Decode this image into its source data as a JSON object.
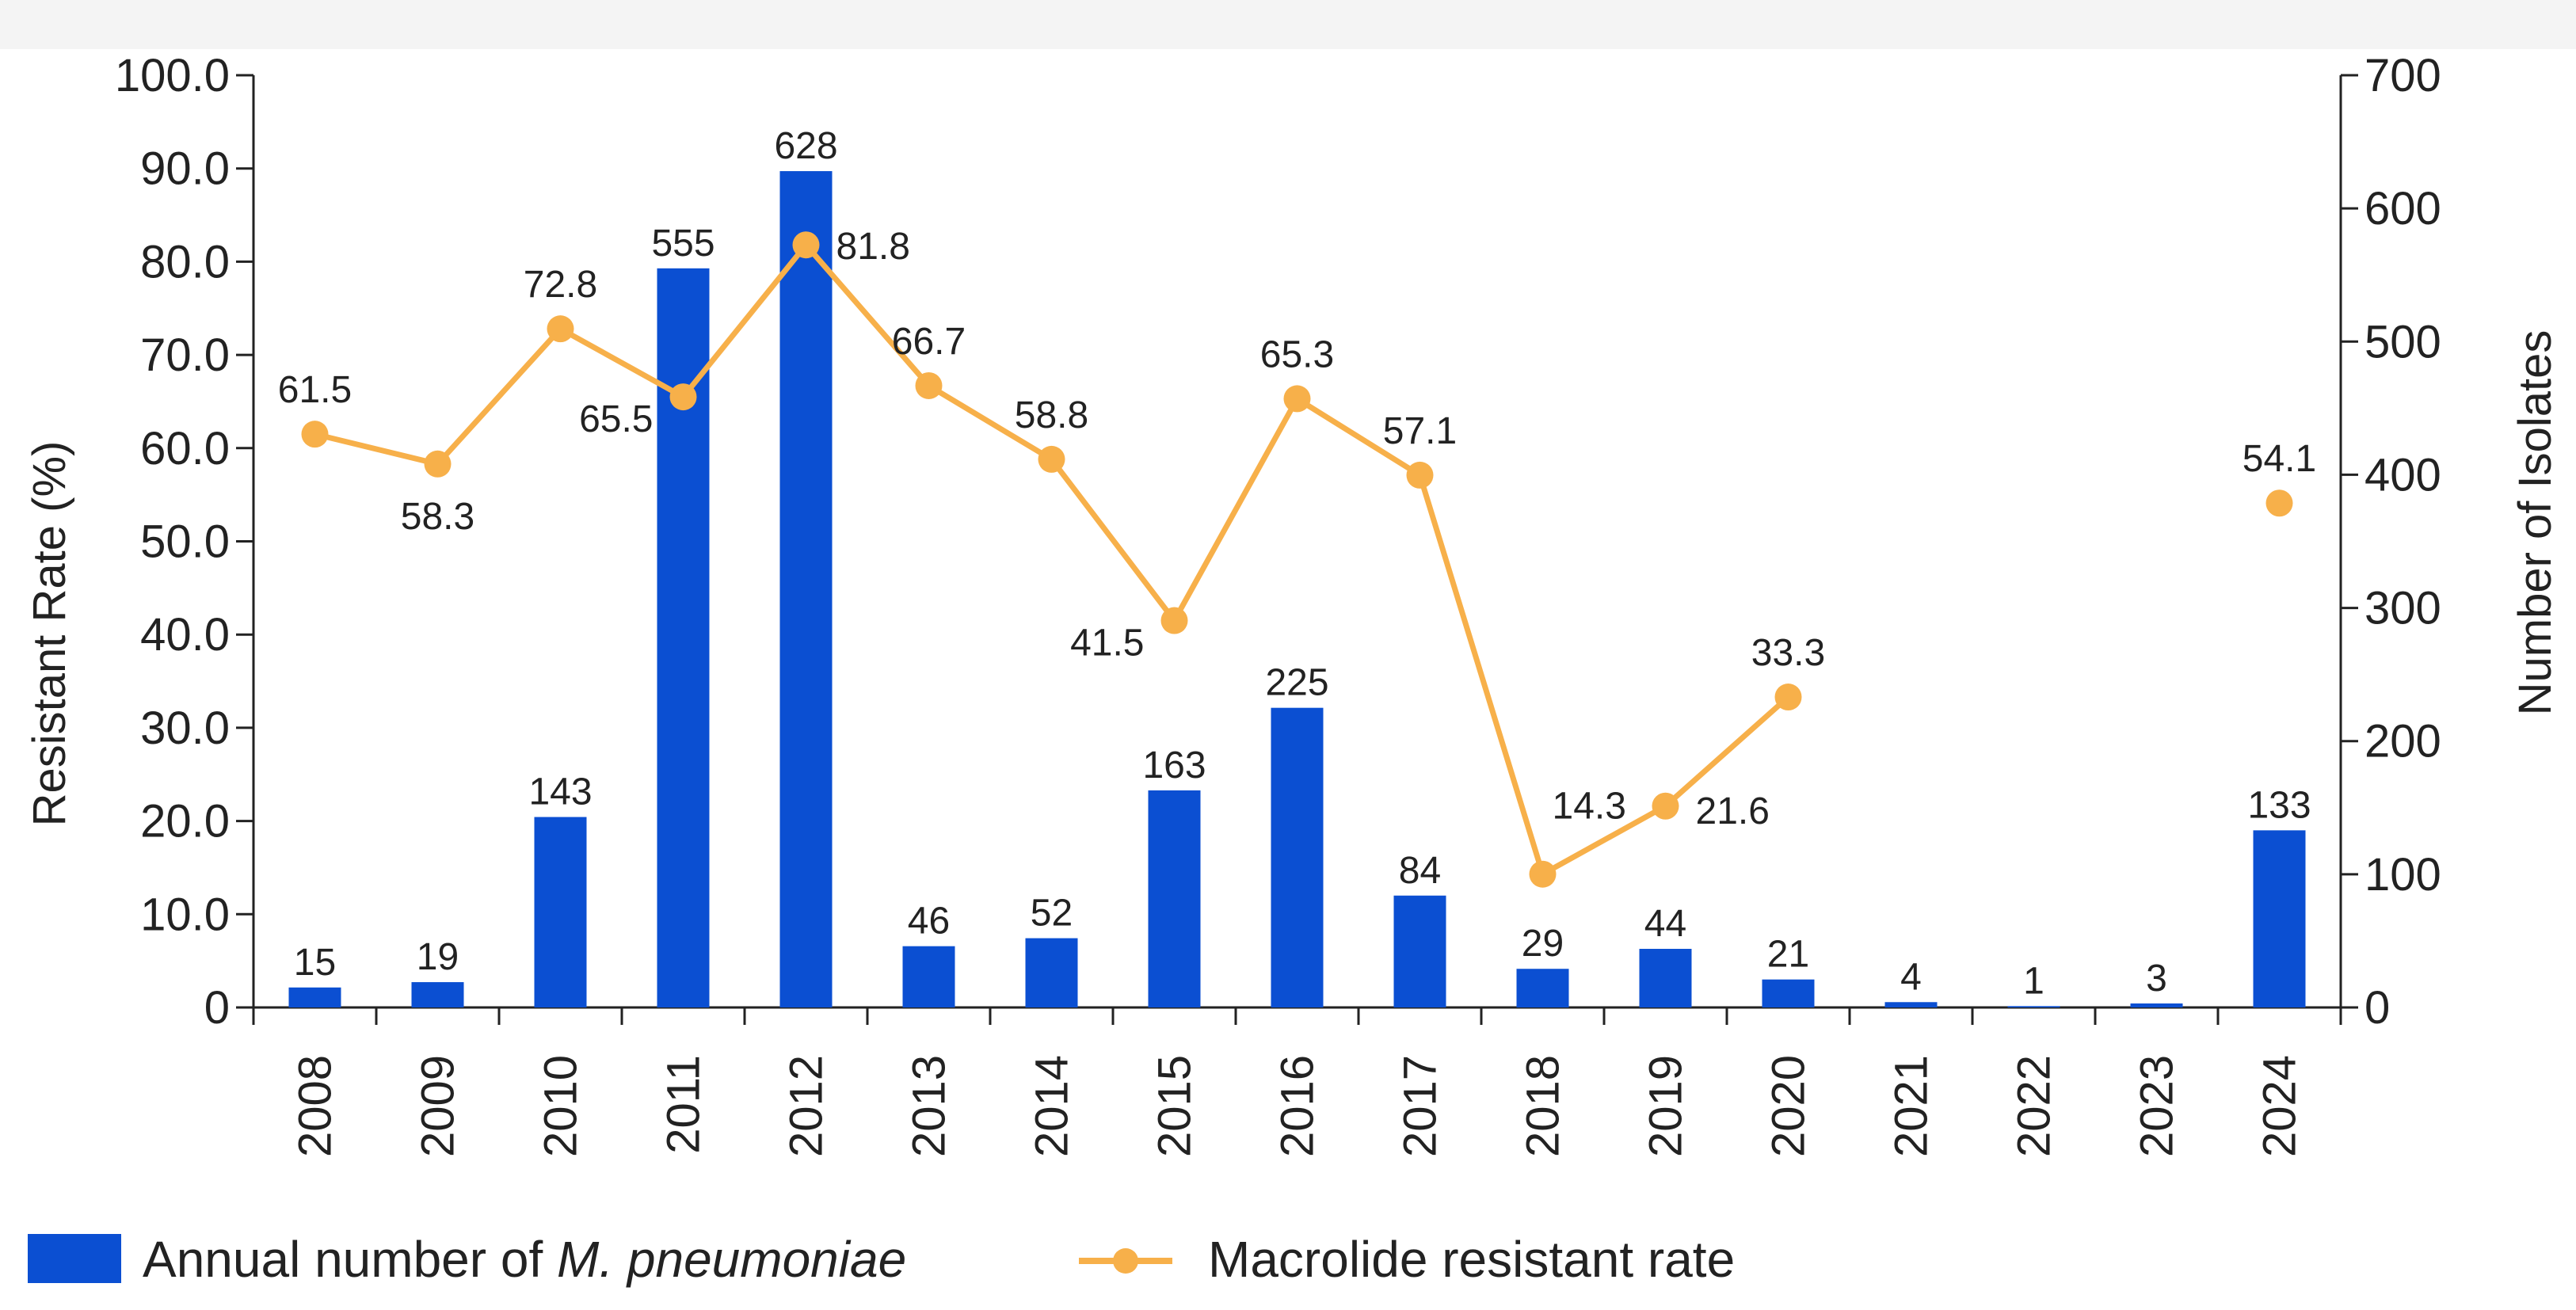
{
  "chart_data": {
    "type": "bar+line",
    "categories": [
      "2008",
      "2009",
      "2010",
      "2011",
      "2012",
      "2013",
      "2014",
      "2015",
      "2016",
      "2017",
      "2018",
      "2019",
      "2020",
      "2021",
      "2022",
      "2023",
      "2024"
    ],
    "series": [
      {
        "name": "Annual number of M. pneumoniae",
        "type": "bar",
        "axis": "right",
        "color": "#0b4fd2",
        "values": [
          15,
          19,
          143,
          555,
          628,
          46,
          52,
          163,
          225,
          84,
          29,
          44,
          21,
          4,
          1,
          3,
          133
        ]
      },
      {
        "name": "Macrolide resistant rate",
        "type": "line",
        "axis": "left",
        "color": "#f7b04a",
        "values": [
          61.5,
          58.3,
          72.8,
          65.5,
          81.8,
          66.7,
          58.8,
          41.5,
          65.3,
          57.1,
          14.3,
          21.6,
          33.3,
          null,
          null,
          null,
          54.1
        ]
      }
    ],
    "y_left": {
      "label": "Resistant Rate (%)",
      "ylim": [
        0,
        100
      ],
      "ticks": [
        "0",
        "10.0",
        "20.0",
        "30.0",
        "40.0",
        "50.0",
        "60.0",
        "70.0",
        "80.0",
        "90.0",
        "100.0"
      ]
    },
    "y_right": {
      "label": "Number of Isolates",
      "ylim": [
        0,
        700
      ],
      "ticks": [
        "0",
        "100",
        "200",
        "300",
        "400",
        "500",
        "600",
        "700"
      ]
    },
    "legend": {
      "placement": "bottom",
      "bar_label_prefix": "Annual number of ",
      "bar_label_italic": "M. pneumoniae",
      "line_label": "Macrolide resistant rate"
    },
    "grid": false
  }
}
